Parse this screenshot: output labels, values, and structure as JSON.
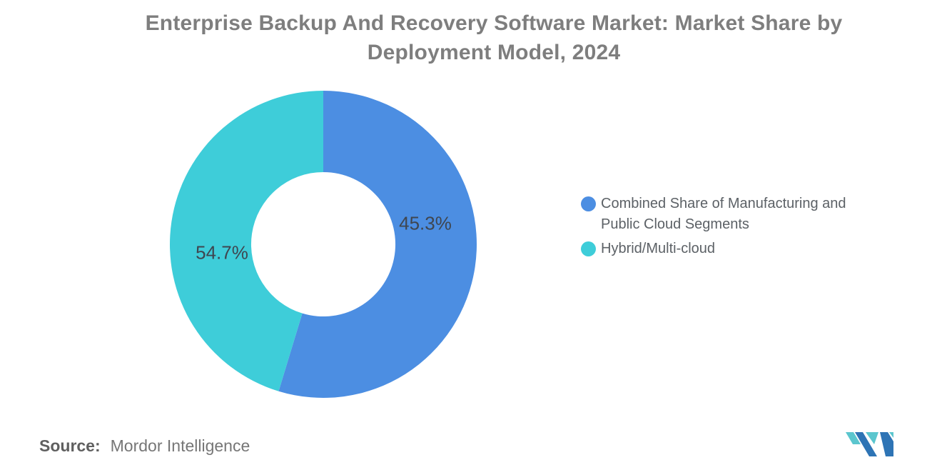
{
  "title": "Enterprise Backup And Recovery Software Market: Market Share by Deployment Model, 2024",
  "chart_data": {
    "type": "pie",
    "subtype": "donut",
    "start_angle": "top",
    "direction": "clockwise",
    "inner_radius_ratio": 0.47,
    "categories": [
      "Combined Share of Manufacturing and Public Cloud Segments",
      "Hybrid/Multi-cloud"
    ],
    "values": [
      54.7,
      45.3
    ],
    "value_labels": [
      "54.7%",
      "45.3%"
    ],
    "colors": [
      "#4C8EE2",
      "#3ECDD9"
    ],
    "legend_position": "right",
    "legend": [
      {
        "label": "Combined Share of Manufacturing and Public Cloud Segments",
        "color": "#4C8EE2"
      },
      {
        "label": "Hybrid/Multi-cloud",
        "color": "#3ECDD9"
      }
    ]
  },
  "source": {
    "label": "Source:",
    "value": "Mordor Intelligence"
  },
  "logo": {
    "name": "mordor-intelligence-logo",
    "colors": {
      "blue": "#2E74B5",
      "teal": "#5BC6CE"
    }
  }
}
